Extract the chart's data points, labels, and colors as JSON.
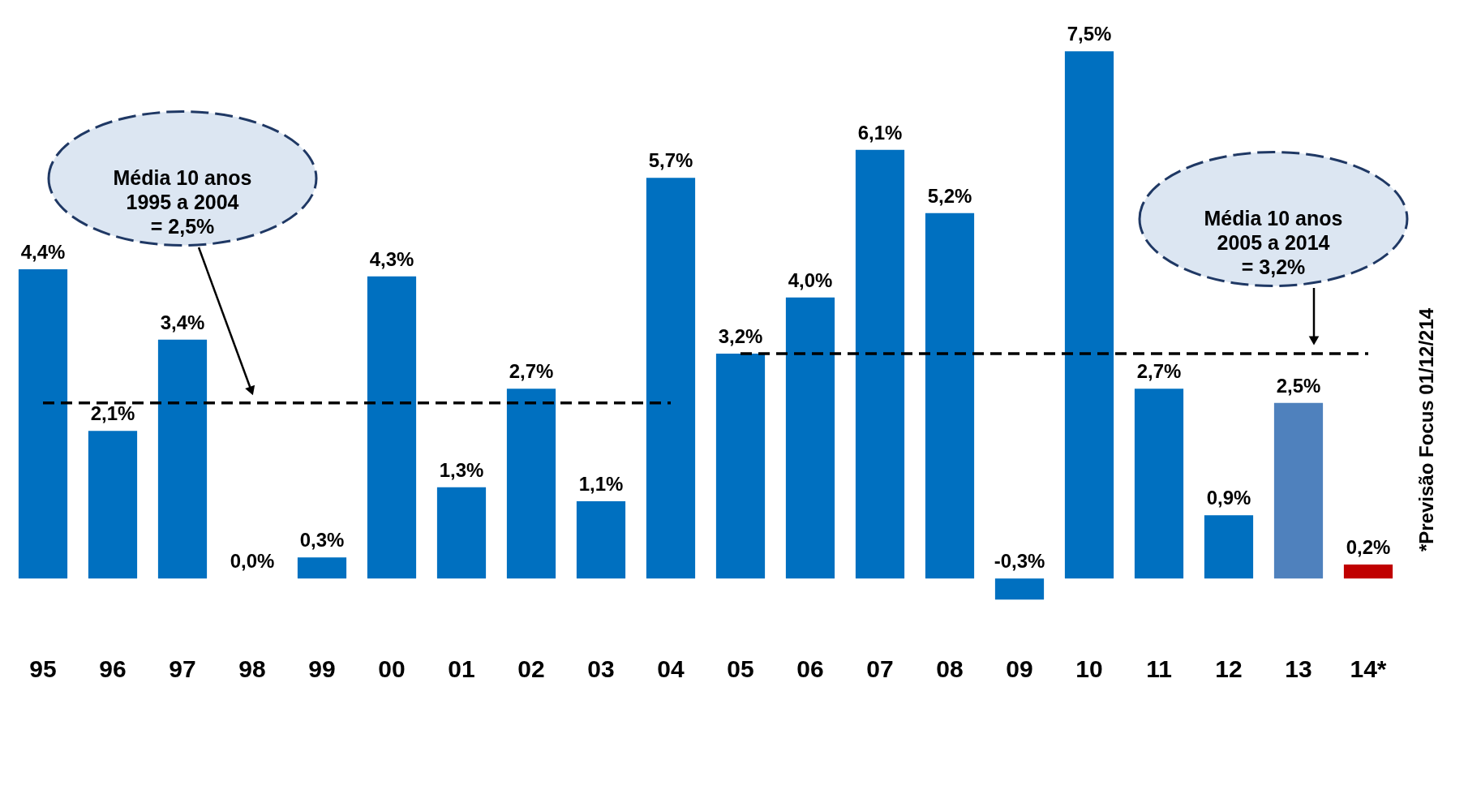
{
  "chart_data": {
    "type": "bar",
    "categories": [
      "95",
      "96",
      "97",
      "98",
      "99",
      "00",
      "01",
      "02",
      "03",
      "04",
      "05",
      "06",
      "07",
      "08",
      "09",
      "10",
      "11",
      "12",
      "13",
      "14*"
    ],
    "series": [
      {
        "values": [
          4.4,
          2.1,
          3.4,
          0.0,
          0.3,
          4.3,
          1.3,
          2.7,
          1.1,
          5.7,
          3.2,
          4.0,
          6.1,
          5.2,
          -0.3,
          7.5,
          2.7,
          0.9,
          2.5,
          0.2
        ],
        "colors": [
          "#0070c0",
          "#0070c0",
          "#0070c0",
          "#0070c0",
          "#0070c0",
          "#0070c0",
          "#0070c0",
          "#0070c0",
          "#0070c0",
          "#0070c0",
          "#0070c0",
          "#0070c0",
          "#0070c0",
          "#0070c0",
          "#0070c0",
          "#0070c0",
          "#0070c0",
          "#0070c0",
          "#4f81bd",
          "#c00000"
        ],
        "value_labels": [
          "4,4%",
          "2,1%",
          "3,4%",
          "0,0%",
          "0,3%",
          "4,3%",
          "1,3%",
          "2,7%",
          "1,1%",
          "5,7%",
          "3,2%",
          "4,0%",
          "6,1%",
          "5,2%",
          "-0,3%",
          "7,5%",
          "2,7%",
          "0,9%",
          "2,5%",
          "0,2%"
        ]
      },
      {
        "type": "line",
        "color": "#000000",
        "line_style": "dashed",
        "values": [
          2.5,
          2.5,
          2.5,
          2.5,
          2.5,
          2.5,
          2.5,
          2.5,
          2.5,
          2.5,
          null,
          null,
          null,
          null,
          null,
          null,
          null,
          null,
          null,
          null
        ]
      },
      {
        "type": "line",
        "color": "#000000",
        "line_style": "dashed",
        "values": [
          null,
          null,
          null,
          null,
          null,
          null,
          null,
          null,
          null,
          null,
          3.2,
          3.2,
          3.2,
          3.2,
          3.2,
          3.2,
          3.2,
          3.2,
          3.2,
          3.2
        ]
      }
    ],
    "annotations": [
      "Média 10 anos\n1995 a 2004\n= 2,5%",
      "Média 10 anos\n2005 a 2014\n= 3,2%",
      "*Previsão Focus  01/12/214"
    ],
    "marker": "none"
  }
}
